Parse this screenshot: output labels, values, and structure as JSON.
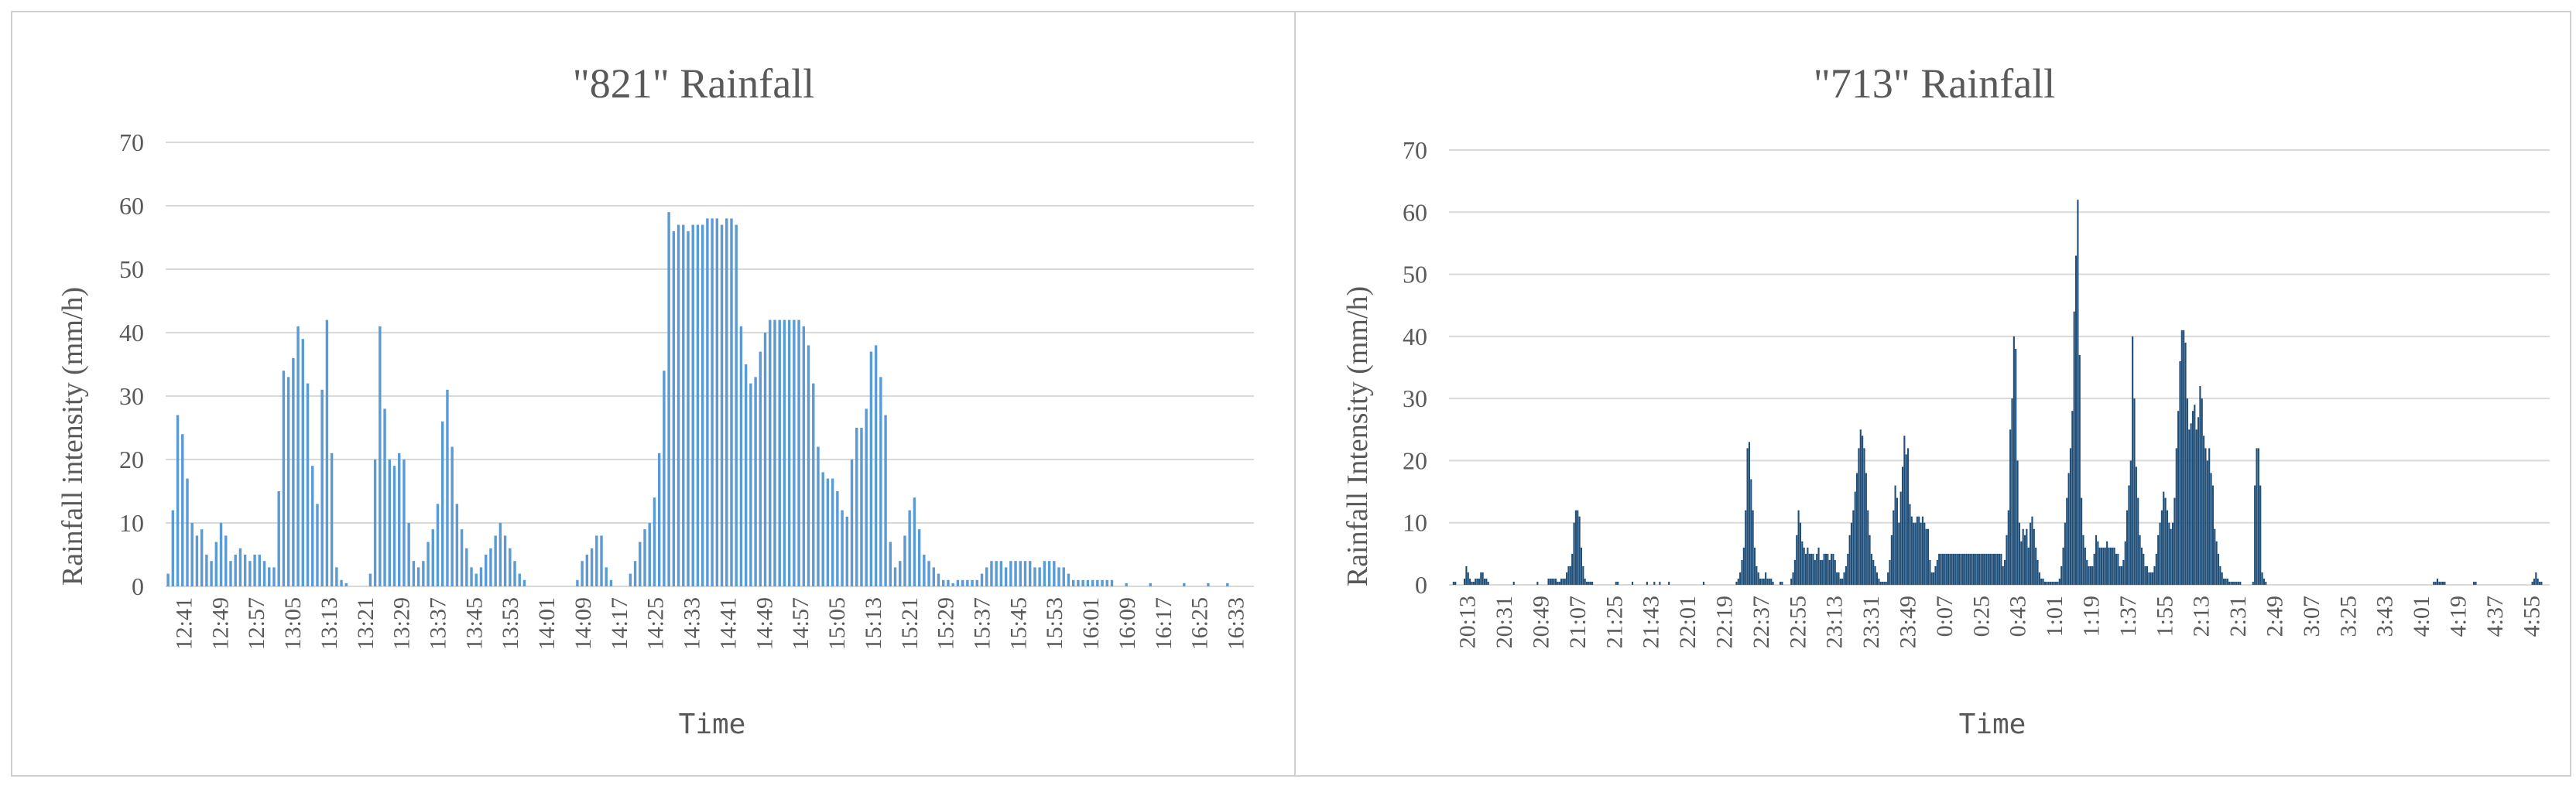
{
  "chart_data": [
    {
      "type": "bar",
      "title": "\"821\"  Rainfall",
      "xlabel": "Time",
      "ylabel": "Rainfall intensity (mm/h)",
      "ylim": [
        0,
        70
      ],
      "yticks": [
        "0",
        "10",
        "20",
        "30",
        "40",
        "50",
        "60",
        "70"
      ],
      "xticks": [
        "12:41",
        "12:49",
        "12:57",
        "13:05",
        "13:13",
        "13:21",
        "13:29",
        "13:37",
        "13:45",
        "13:53",
        "14:01",
        "14:09",
        "14:17",
        "14:25",
        "14:33",
        "14:41",
        "14:49",
        "14:57",
        "15:05",
        "15:13",
        "15:21",
        "15:29",
        "15:37",
        "15:45",
        "15:53",
        "16:01",
        "16:09",
        "16:17",
        "16:25",
        "16:33"
      ],
      "grid": true,
      "color": "#5b9bd5",
      "series": [
        {
          "values": [
            2,
            12,
            27,
            24,
            17,
            10,
            8,
            9,
            5,
            4,
            7,
            10,
            8,
            4,
            5,
            6,
            5,
            4,
            5,
            5,
            4,
            3,
            3,
            15,
            34,
            33,
            36,
            41,
            39,
            32,
            19,
            13,
            31,
            42,
            21,
            3,
            1,
            0.5,
            0,
            0,
            0,
            0,
            2,
            20,
            41,
            28,
            20,
            19,
            21,
            20,
            10,
            4,
            3,
            4,
            7,
            9,
            13,
            26,
            31,
            22,
            13,
            9,
            6,
            3,
            2,
            3,
            5,
            6,
            8,
            10,
            8,
            6,
            4,
            2,
            1,
            0,
            0,
            0,
            0,
            0,
            0,
            0,
            0,
            0,
            0,
            1,
            4,
            5,
            6,
            8,
            8,
            3,
            1,
            0,
            0,
            0,
            2,
            4,
            7,
            9,
            10,
            14,
            21,
            34,
            59,
            56,
            57,
            57,
            56,
            57,
            57,
            57,
            58,
            58,
            58,
            57,
            58,
            58,
            57,
            41,
            35,
            32,
            33,
            37,
            40,
            42,
            42,
            42,
            42,
            42,
            42,
            42,
            41,
            38,
            32,
            22,
            18,
            17,
            17,
            15,
            12,
            11,
            20,
            25,
            25,
            28,
            37,
            38,
            33,
            27,
            7,
            3,
            4,
            8,
            12,
            14,
            9,
            5,
            4,
            3,
            2,
            1,
            1,
            0.5,
            1,
            1,
            1,
            1,
            1,
            2,
            3,
            4,
            4,
            4,
            3,
            4,
            4,
            4,
            4,
            4,
            3,
            3,
            4,
            4,
            4,
            3,
            3,
            2,
            1,
            1,
            1,
            1,
            1,
            1,
            1,
            1,
            1,
            0,
            0,
            0.5,
            0,
            0,
            0,
            0,
            0.5,
            0,
            0,
            0,
            0,
            0,
            0,
            0.5,
            0,
            0,
            0,
            0,
            0.5,
            0,
            0,
            0,
            0.5,
            0,
            0,
            0,
            0,
            0
          ]
        }
      ]
    },
    {
      "type": "bar",
      "title": "\"713\"  Rainfall",
      "xlabel": "Time",
      "ylabel": "Rainfall Intensity (mm/h)",
      "ylim": [
        0,
        70
      ],
      "yticks": [
        "0",
        "10",
        "20",
        "30",
        "40",
        "50",
        "60",
        "70"
      ],
      "xticks": [
        "20:13",
        "20:31",
        "20:49",
        "21:07",
        "21:25",
        "21:43",
        "22:01",
        "22:19",
        "22:37",
        "22:55",
        "23:13",
        "23:31",
        "23:49",
        "0:07",
        "0:25",
        "0:43",
        "1:01",
        "1:19",
        "1:37",
        "1:55",
        "2:13",
        "2:31",
        "2:49",
        "3:07",
        "3:25",
        "3:43",
        "4:01",
        "4:19",
        "4:37",
        "4:55"
      ],
      "grid": true,
      "color": "#1f4e79",
      "series": [
        {
          "values": [
            0,
            0,
            0.5,
            0.5,
            0,
            0,
            0,
            0,
            1,
            3,
            2,
            1,
            0.5,
            0.5,
            1,
            1,
            1,
            2,
            2,
            1,
            1,
            0.5,
            0,
            0,
            0,
            0,
            0,
            0,
            0,
            0,
            0,
            0,
            0,
            0,
            0,
            0.5,
            0,
            0,
            0,
            0,
            0,
            0,
            0,
            0,
            0,
            0,
            0,
            0,
            0.5,
            0,
            0,
            0,
            0,
            0,
            1,
            1,
            1,
            1,
            1,
            0.5,
            0.5,
            1,
            1,
            1,
            2,
            3,
            3,
            5,
            10,
            12,
            12,
            11,
            6,
            3,
            1,
            0.5,
            0.5,
            0.5,
            0.5,
            0,
            0,
            0,
            0,
            0,
            0,
            0,
            0,
            0,
            0,
            0,
            0,
            0.5,
            0.5,
            0,
            0,
            0,
            0,
            0,
            0,
            0,
            0.5,
            0,
            0,
            0,
            0,
            0,
            0,
            0,
            0.5,
            0,
            0,
            0,
            0.5,
            0,
            0,
            0.5,
            0,
            0,
            0,
            0,
            0.5,
            0,
            0,
            0,
            0,
            0,
            0,
            0,
            0,
            0,
            0,
            0,
            0,
            0,
            0,
            0,
            0,
            0,
            0,
            0.5,
            0,
            0,
            0,
            0,
            0,
            0,
            0,
            0,
            0,
            0,
            0,
            0,
            0,
            0,
            0,
            0,
            0,
            0.5,
            1,
            2,
            4,
            6,
            12,
            22,
            23,
            17,
            12,
            6,
            3,
            2,
            1,
            1,
            1,
            2,
            1,
            1,
            1,
            0.5,
            0,
            0,
            0,
            0.5,
            0.5,
            0,
            0,
            0,
            0,
            1,
            2,
            4,
            8,
            12,
            10,
            7,
            6,
            5,
            6,
            5,
            5,
            5,
            4,
            5,
            6,
            4,
            4,
            5,
            5,
            5,
            4,
            5,
            5,
            4,
            2,
            2,
            1,
            1,
            2,
            3,
            5,
            8,
            10,
            12,
            15,
            18,
            22,
            25,
            24,
            22,
            18,
            12,
            8,
            5,
            4,
            3,
            2,
            1,
            0.5,
            0.5,
            0.5,
            0.5,
            2,
            4,
            8,
            12,
            16,
            14,
            10,
            15,
            19,
            24,
            21,
            22,
            13,
            11,
            10,
            10,
            11,
            11,
            10,
            11,
            10,
            9,
            9,
            4,
            2,
            2,
            3,
            4,
            5,
            5,
            5,
            5,
            5,
            5,
            5,
            5,
            5,
            5,
            5,
            5,
            5,
            5,
            5,
            5,
            5,
            5,
            5,
            5,
            5,
            5,
            5,
            5,
            5,
            5,
            5,
            5,
            5,
            5,
            5,
            5,
            5,
            5,
            5,
            3,
            4,
            8,
            12,
            25,
            30,
            40,
            38,
            20,
            10,
            7,
            9,
            8,
            9,
            6,
            10,
            11,
            9,
            6,
            4,
            2,
            1,
            1,
            0.5,
            0.5,
            0.5,
            0.5,
            0.5,
            0.5,
            0.5,
            0.5,
            1,
            3,
            6,
            10,
            14,
            18,
            22,
            28,
            44,
            53,
            62,
            37,
            14,
            8,
            6,
            4,
            3,
            3,
            3,
            5,
            8,
            7,
            6,
            6,
            6,
            6,
            7,
            6,
            6,
            6,
            6,
            5,
            5,
            3,
            3,
            4,
            7,
            12,
            16,
            20,
            40,
            30,
            19,
            14,
            8,
            6,
            5,
            3,
            3,
            2,
            2,
            2,
            3,
            5,
            8,
            10,
            12,
            15,
            14,
            12,
            10,
            9,
            10,
            14,
            22,
            28,
            36,
            41,
            41,
            39,
            30,
            25,
            26,
            28,
            29,
            25,
            27,
            32,
            30,
            24,
            22,
            20,
            22,
            18,
            16,
            9,
            7,
            5,
            3,
            2,
            1,
            1,
            1,
            0.5,
            0.5,
            0.5,
            0.5,
            0.5,
            0.5,
            0.5,
            0,
            0,
            0,
            0,
            0,
            0,
            0.5,
            16,
            22,
            22,
            16,
            2,
            1,
            0.5,
            0,
            0,
            0,
            0,
            0,
            0,
            0,
            0,
            0,
            0,
            0,
            0,
            0,
            0,
            0,
            0,
            0,
            0,
            0,
            0,
            0,
            0,
            0,
            0,
            0,
            0,
            0,
            0,
            0,
            0,
            0,
            0,
            0,
            0,
            0,
            0,
            0,
            0,
            0,
            0,
            0,
            0,
            0,
            0,
            0,
            0,
            0,
            0,
            0,
            0,
            0,
            0,
            0,
            0,
            0,
            0,
            0,
            0,
            0,
            0,
            0,
            0,
            0,
            0,
            0,
            0,
            0,
            0,
            0,
            0,
            0,
            0,
            0,
            0,
            0,
            0,
            0,
            0,
            0,
            0,
            0,
            0,
            0,
            0,
            0,
            0,
            0,
            0,
            0,
            0,
            0,
            0.5,
            0.5,
            1,
            0.5,
            0.5,
            0.5,
            0.5,
            0,
            0,
            0,
            0,
            0,
            0,
            0,
            0,
            0,
            0,
            0,
            0,
            0,
            0,
            0,
            0.5,
            0.5,
            0,
            0,
            0,
            0,
            0,
            0,
            0,
            0,
            0,
            0,
            0,
            0,
            0,
            0,
            0,
            0,
            0,
            0,
            0,
            0,
            0,
            0,
            0,
            0,
            0,
            0,
            0,
            0,
            0,
            0,
            0.5,
            1,
            2,
            1,
            0.5,
            0.5,
            0,
            0,
            0,
            0
          ]
        }
      ]
    }
  ]
}
